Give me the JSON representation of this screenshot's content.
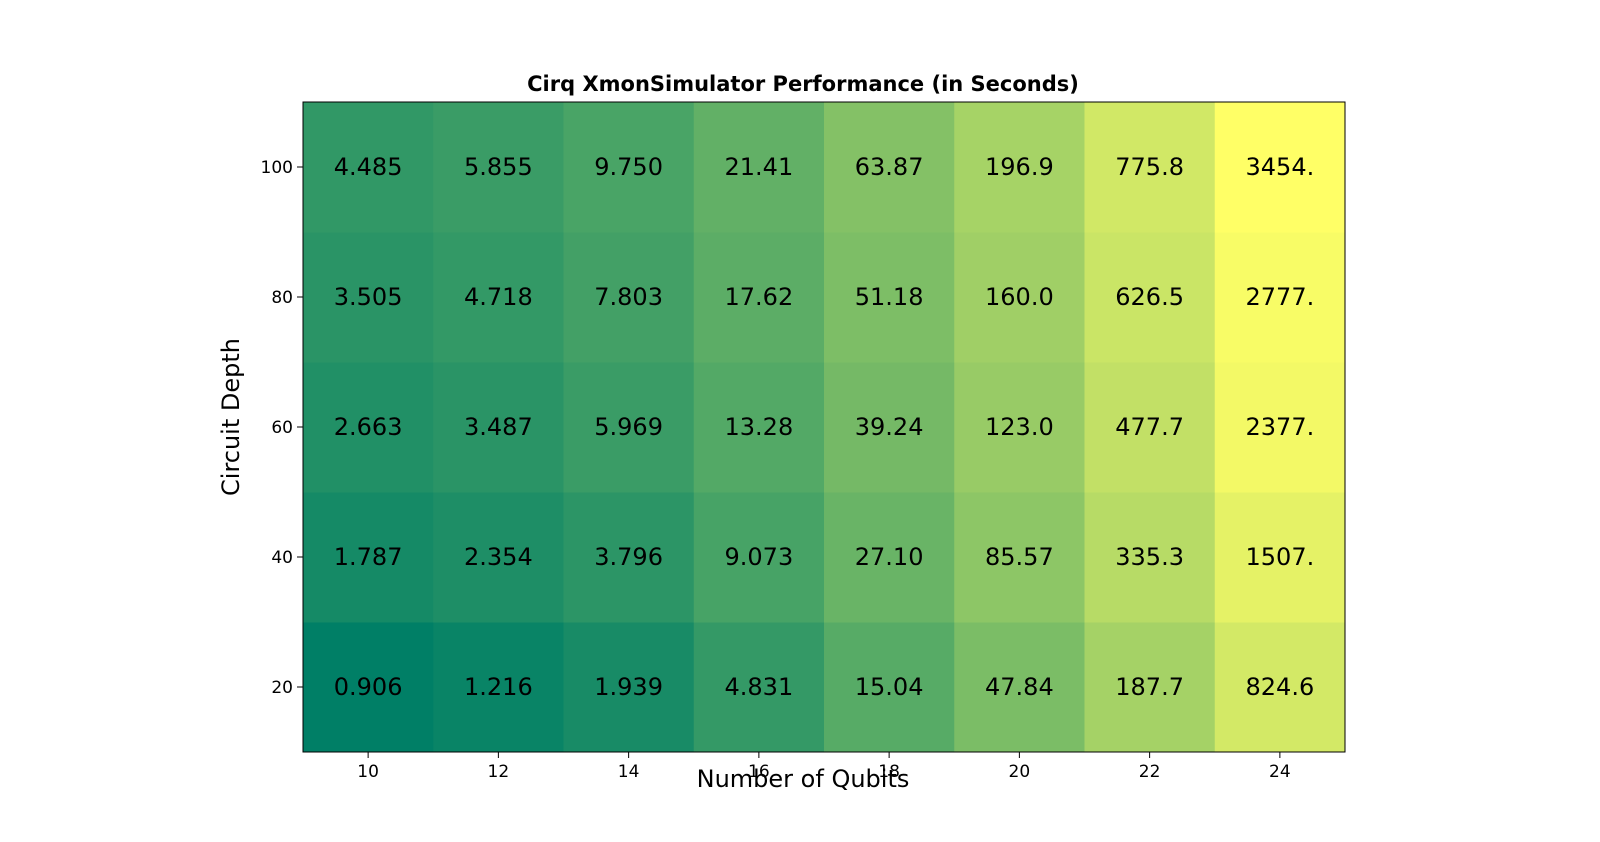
{
  "chart_data": {
    "type": "heatmap",
    "title": "Cirq XmonSimulator Performance (in Seconds)",
    "xlabel": "Number of Qubits",
    "ylabel": "Circuit Depth",
    "x": [
      10,
      12,
      14,
      16,
      18,
      20,
      22,
      24
    ],
    "y": [
      20,
      40,
      60,
      80,
      100
    ],
    "x_tick_labels": [
      "10",
      "12",
      "14",
      "16",
      "18",
      "20",
      "22",
      "24"
    ],
    "y_tick_labels": [
      "20",
      "40",
      "60",
      "80",
      "100"
    ],
    "values": [
      [
        0.906,
        1.216,
        1.939,
        4.831,
        15.04,
        47.84,
        187.7,
        824.6
      ],
      [
        1.787,
        2.354,
        3.796,
        9.073,
        27.1,
        85.57,
        335.3,
        1507
      ],
      [
        2.663,
        3.487,
        5.969,
        13.28,
        39.24,
        123.0,
        477.7,
        2377
      ],
      [
        3.505,
        4.718,
        7.803,
        17.62,
        51.18,
        160.0,
        626.5,
        2777
      ],
      [
        4.485,
        5.855,
        9.75,
        21.41,
        63.87,
        196.9,
        775.8,
        3454
      ]
    ],
    "value_labels": [
      [
        "0.906",
        "1.216",
        "1.939",
        "4.831",
        "15.04",
        "47.84",
        "187.7",
        "824.6"
      ],
      [
        "1.787",
        "2.354",
        "3.796",
        "9.073",
        "27.10",
        "85.57",
        "335.3",
        "1507."
      ],
      [
        "2.663",
        "3.487",
        "5.969",
        "13.28",
        "39.24",
        "123.0",
        "477.7",
        "2377."
      ],
      [
        "3.505",
        "4.718",
        "7.803",
        "17.62",
        "51.18",
        "160.0",
        "626.5",
        "2777."
      ],
      [
        "4.485",
        "5.855",
        "9.750",
        "21.41",
        "63.87",
        "196.9",
        "775.8",
        "3454."
      ]
    ],
    "color_scale": "log",
    "colormap": [
      "#007f66",
      "#ffff66"
    ],
    "grid": false,
    "legend": "none"
  }
}
